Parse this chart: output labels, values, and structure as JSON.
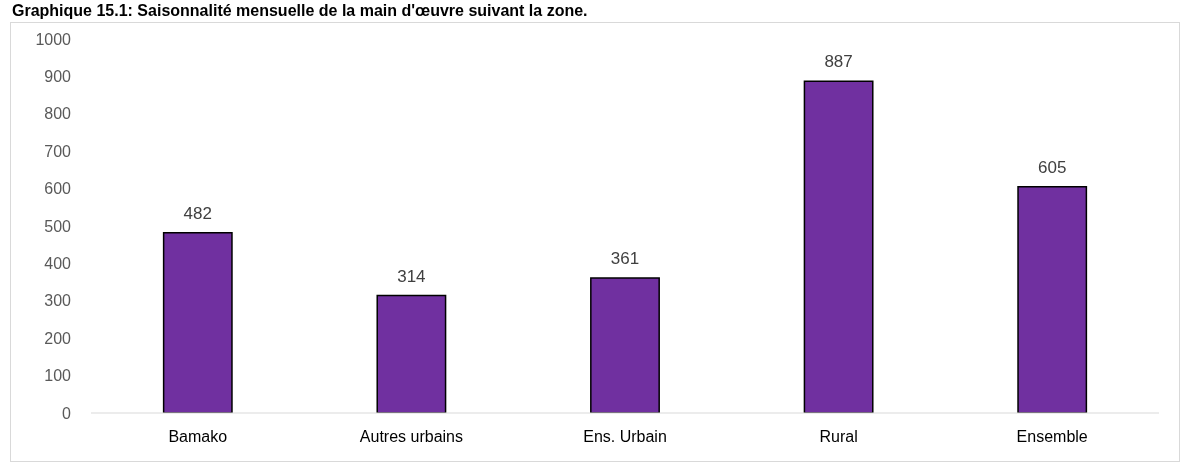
{
  "chart_data": {
    "type": "bar",
    "title": "Graphique 15.1: Saisonnalité mensuelle de la main d'œuvre suivant la zone.",
    "categories": [
      "Bamako",
      "Autres urbains",
      "Ens. Urbain",
      "Rural",
      "Ensemble"
    ],
    "values": [
      482,
      314,
      361,
      887,
      605
    ],
    "color": "#7030a0",
    "ylim": [
      0,
      1000
    ],
    "yticks": [
      0,
      100,
      200,
      300,
      400,
      500,
      600,
      700,
      800,
      900,
      1000
    ],
    "data_labels": true,
    "grid": false
  }
}
